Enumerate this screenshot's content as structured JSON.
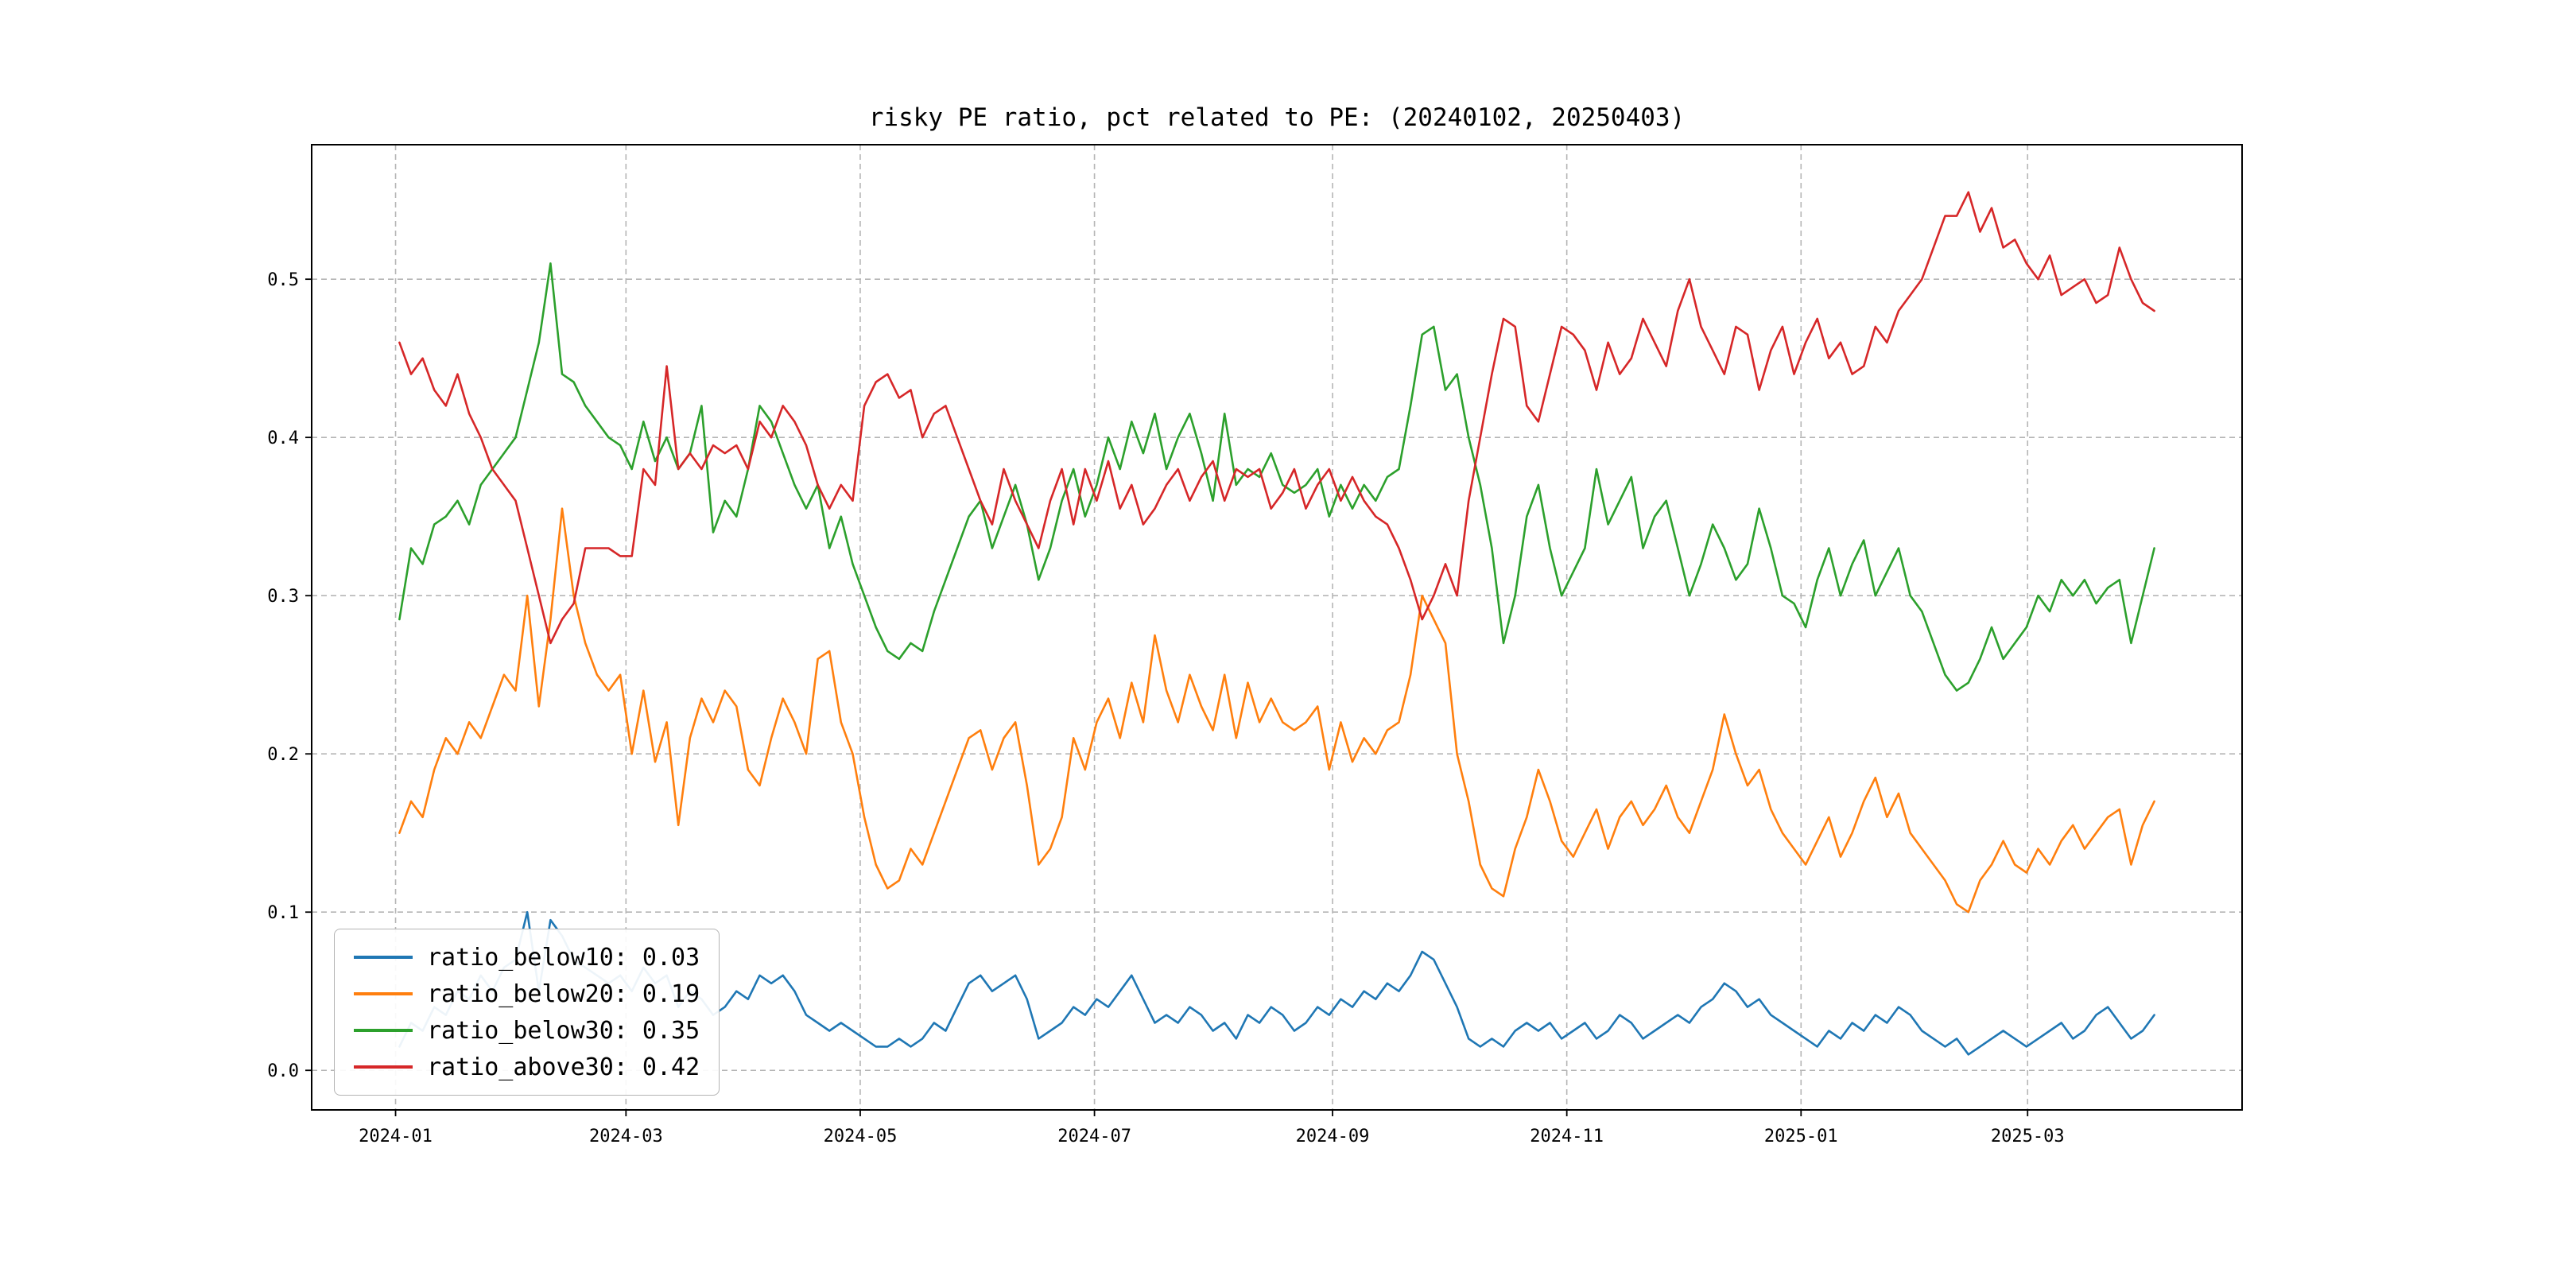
{
  "chart_data": {
    "type": "line",
    "title": "risky PE ratio, pct related to PE: (20240102, 20250403)",
    "x_range": [
      "2024-01-02",
      "2025-04-03"
    ],
    "x_ticks": [
      "2024-01",
      "2024-03",
      "2024-05",
      "2024-07",
      "2024-09",
      "2024-11",
      "2025-01",
      "2025-03"
    ],
    "y_ticks": [
      0.0,
      0.1,
      0.2,
      0.3,
      0.4,
      0.5
    ],
    "ylim": [
      -0.025,
      0.585
    ],
    "grid": "dashed",
    "legend_position": "lower-left",
    "series": [
      {
        "name": "ratio_below10",
        "legend_label": "ratio_below10: 0.03",
        "color": "#1f77b4",
        "values": [
          0.015,
          0.03,
          0.025,
          0.04,
          0.035,
          0.05,
          0.045,
          0.06,
          0.05,
          0.065,
          0.07,
          0.1,
          0.05,
          0.095,
          0.085,
          0.07,
          0.065,
          0.06,
          0.055,
          0.06,
          0.05,
          0.065,
          0.055,
          0.06,
          0.04,
          0.05,
          0.045,
          0.035,
          0.04,
          0.05,
          0.045,
          0.06,
          0.055,
          0.06,
          0.05,
          0.035,
          0.03,
          0.025,
          0.03,
          0.025,
          0.02,
          0.015,
          0.015,
          0.02,
          0.015,
          0.02,
          0.03,
          0.025,
          0.04,
          0.055,
          0.06,
          0.05,
          0.055,
          0.06,
          0.045,
          0.02,
          0.025,
          0.03,
          0.04,
          0.035,
          0.045,
          0.04,
          0.05,
          0.06,
          0.045,
          0.03,
          0.035,
          0.03,
          0.04,
          0.035,
          0.025,
          0.03,
          0.02,
          0.035,
          0.03,
          0.04,
          0.035,
          0.025,
          0.03,
          0.04,
          0.035,
          0.045,
          0.04,
          0.05,
          0.045,
          0.055,
          0.05,
          0.06,
          0.075,
          0.07,
          0.055,
          0.04,
          0.02,
          0.015,
          0.02,
          0.015,
          0.025,
          0.03,
          0.025,
          0.03,
          0.02,
          0.025,
          0.03,
          0.02,
          0.025,
          0.035,
          0.03,
          0.02,
          0.025,
          0.03,
          0.035,
          0.03,
          0.04,
          0.045,
          0.055,
          0.05,
          0.04,
          0.045,
          0.035,
          0.03,
          0.025,
          0.02,
          0.015,
          0.025,
          0.02,
          0.03,
          0.025,
          0.035,
          0.03,
          0.04,
          0.035,
          0.025,
          0.02,
          0.015,
          0.02,
          0.01,
          0.015,
          0.02,
          0.025,
          0.02,
          0.015,
          0.02,
          0.025,
          0.03,
          0.02,
          0.025,
          0.035,
          0.04,
          0.03,
          0.02,
          0.025,
          0.035
        ]
      },
      {
        "name": "ratio_below20",
        "legend_label": "ratio_below20: 0.19",
        "color": "#ff7f0e",
        "values": [
          0.15,
          0.17,
          0.16,
          0.19,
          0.21,
          0.2,
          0.22,
          0.21,
          0.23,
          0.25,
          0.24,
          0.3,
          0.23,
          0.285,
          0.355,
          0.3,
          0.27,
          0.25,
          0.24,
          0.25,
          0.2,
          0.24,
          0.195,
          0.22,
          0.155,
          0.21,
          0.235,
          0.22,
          0.24,
          0.23,
          0.19,
          0.18,
          0.21,
          0.235,
          0.22,
          0.2,
          0.26,
          0.265,
          0.22,
          0.2,
          0.16,
          0.13,
          0.115,
          0.12,
          0.14,
          0.13,
          0.15,
          0.17,
          0.19,
          0.21,
          0.215,
          0.19,
          0.21,
          0.22,
          0.18,
          0.13,
          0.14,
          0.16,
          0.21,
          0.19,
          0.22,
          0.235,
          0.21,
          0.245,
          0.22,
          0.275,
          0.24,
          0.22,
          0.25,
          0.23,
          0.215,
          0.25,
          0.21,
          0.245,
          0.22,
          0.235,
          0.22,
          0.215,
          0.22,
          0.23,
          0.19,
          0.22,
          0.195,
          0.21,
          0.2,
          0.215,
          0.22,
          0.25,
          0.3,
          0.285,
          0.27,
          0.2,
          0.17,
          0.13,
          0.115,
          0.11,
          0.14,
          0.16,
          0.19,
          0.17,
          0.145,
          0.135,
          0.15,
          0.165,
          0.14,
          0.16,
          0.17,
          0.155,
          0.165,
          0.18,
          0.16,
          0.15,
          0.17,
          0.19,
          0.225,
          0.2,
          0.18,
          0.19,
          0.165,
          0.15,
          0.14,
          0.13,
          0.145,
          0.16,
          0.135,
          0.15,
          0.17,
          0.185,
          0.16,
          0.175,
          0.15,
          0.14,
          0.13,
          0.12,
          0.105,
          0.1,
          0.12,
          0.13,
          0.145,
          0.13,
          0.125,
          0.14,
          0.13,
          0.145,
          0.155,
          0.14,
          0.15,
          0.16,
          0.165,
          0.13,
          0.155,
          0.17
        ]
      },
      {
        "name": "ratio_below30",
        "legend_label": "ratio_below30: 0.35",
        "color": "#2ca02c",
        "values": [
          0.285,
          0.33,
          0.32,
          0.345,
          0.35,
          0.36,
          0.345,
          0.37,
          0.38,
          0.39,
          0.4,
          0.43,
          0.46,
          0.51,
          0.44,
          0.435,
          0.42,
          0.41,
          0.4,
          0.395,
          0.38,
          0.41,
          0.385,
          0.4,
          0.38,
          0.39,
          0.42,
          0.34,
          0.36,
          0.35,
          0.38,
          0.42,
          0.41,
          0.39,
          0.37,
          0.355,
          0.37,
          0.33,
          0.35,
          0.32,
          0.3,
          0.28,
          0.265,
          0.26,
          0.27,
          0.265,
          0.29,
          0.31,
          0.33,
          0.35,
          0.36,
          0.33,
          0.35,
          0.37,
          0.345,
          0.31,
          0.33,
          0.36,
          0.38,
          0.35,
          0.37,
          0.4,
          0.38,
          0.41,
          0.39,
          0.415,
          0.38,
          0.4,
          0.415,
          0.39,
          0.36,
          0.415,
          0.37,
          0.38,
          0.375,
          0.39,
          0.37,
          0.365,
          0.37,
          0.38,
          0.35,
          0.37,
          0.355,
          0.37,
          0.36,
          0.375,
          0.38,
          0.42,
          0.465,
          0.47,
          0.43,
          0.44,
          0.4,
          0.37,
          0.33,
          0.27,
          0.3,
          0.35,
          0.37,
          0.33,
          0.3,
          0.315,
          0.33,
          0.38,
          0.345,
          0.36,
          0.375,
          0.33,
          0.35,
          0.36,
          0.33,
          0.3,
          0.32,
          0.345,
          0.33,
          0.31,
          0.32,
          0.355,
          0.33,
          0.3,
          0.295,
          0.28,
          0.31,
          0.33,
          0.3,
          0.32,
          0.335,
          0.3,
          0.315,
          0.33,
          0.3,
          0.29,
          0.27,
          0.25,
          0.24,
          0.245,
          0.26,
          0.28,
          0.26,
          0.27,
          0.28,
          0.3,
          0.29,
          0.31,
          0.3,
          0.31,
          0.295,
          0.305,
          0.31,
          0.27,
          0.3,
          0.33
        ]
      },
      {
        "name": "ratio_above30",
        "legend_label": "ratio_above30: 0.42",
        "color": "#d62728",
        "values": [
          0.46,
          0.44,
          0.45,
          0.43,
          0.42,
          0.44,
          0.415,
          0.4,
          0.38,
          0.37,
          0.36,
          0.33,
          0.3,
          0.27,
          0.285,
          0.295,
          0.33,
          0.33,
          0.33,
          0.325,
          0.325,
          0.38,
          0.37,
          0.445,
          0.38,
          0.39,
          0.38,
          0.395,
          0.39,
          0.395,
          0.38,
          0.41,
          0.4,
          0.42,
          0.41,
          0.395,
          0.37,
          0.355,
          0.37,
          0.36,
          0.42,
          0.435,
          0.44,
          0.425,
          0.43,
          0.4,
          0.415,
          0.42,
          0.4,
          0.38,
          0.36,
          0.345,
          0.38,
          0.36,
          0.345,
          0.33,
          0.36,
          0.38,
          0.345,
          0.38,
          0.36,
          0.385,
          0.355,
          0.37,
          0.345,
          0.355,
          0.37,
          0.38,
          0.36,
          0.375,
          0.385,
          0.36,
          0.38,
          0.375,
          0.38,
          0.355,
          0.365,
          0.38,
          0.355,
          0.37,
          0.38,
          0.36,
          0.375,
          0.36,
          0.35,
          0.345,
          0.33,
          0.31,
          0.285,
          0.3,
          0.32,
          0.3,
          0.36,
          0.4,
          0.44,
          0.475,
          0.47,
          0.42,
          0.41,
          0.44,
          0.47,
          0.465,
          0.455,
          0.43,
          0.46,
          0.44,
          0.45,
          0.475,
          0.46,
          0.445,
          0.48,
          0.5,
          0.47,
          0.455,
          0.44,
          0.47,
          0.465,
          0.43,
          0.455,
          0.47,
          0.44,
          0.46,
          0.475,
          0.45,
          0.46,
          0.44,
          0.445,
          0.47,
          0.46,
          0.48,
          0.49,
          0.5,
          0.52,
          0.54,
          0.54,
          0.555,
          0.53,
          0.545,
          0.52,
          0.525,
          0.51,
          0.5,
          0.515,
          0.49,
          0.495,
          0.5,
          0.485,
          0.49,
          0.52,
          0.5,
          0.485,
          0.48
        ]
      }
    ]
  }
}
